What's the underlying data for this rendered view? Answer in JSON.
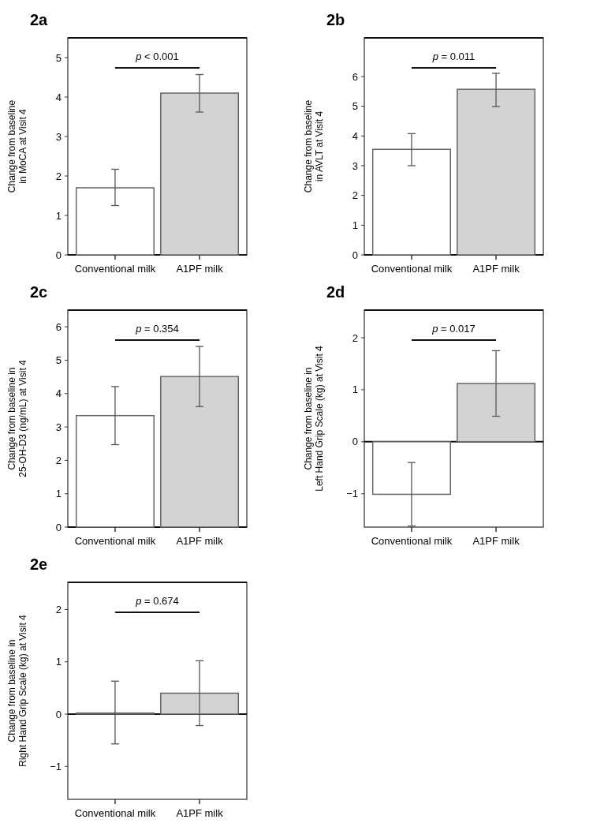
{
  "chart_data": [
    {
      "type": "bar",
      "title": "2a",
      "ylabel": "Change from baseline\nin MoCA at Visit 4",
      "categories": [
        "Conventional milk",
        "A1PF milk"
      ],
      "values": [
        1.7,
        4.1
      ],
      "colors": [
        "#ffffff",
        "#d3d3d3"
      ],
      "errors": [
        [
          1.25,
          2.17
        ],
        [
          3.62,
          4.57
        ]
      ],
      "ylim": [
        0,
        5.5
      ],
      "yticks": [
        0,
        1,
        2,
        3,
        4,
        5
      ],
      "annotations": [
        "p < 0.001"
      ]
    },
    {
      "type": "bar",
      "title": "2b",
      "ylabel": "Change from baseline\nin AVLT at Visit 4",
      "categories": [
        "Conventional milk",
        "A1PF milk"
      ],
      "values": [
        3.55,
        5.57
      ],
      "colors": [
        "#ffffff",
        "#d3d3d3"
      ],
      "errors": [
        [
          3.0,
          4.08
        ],
        [
          4.99,
          6.11
        ]
      ],
      "ylim": [
        0,
        7.3
      ],
      "yticks": [
        0,
        1,
        2,
        3,
        4,
        5,
        6
      ],
      "annotations": [
        "p = 0.011"
      ]
    },
    {
      "type": "bar",
      "title": "2c",
      "ylabel": "Change from baseline in\n25-OH-D3 (ng/mL) at Visit 4",
      "categories": [
        "Conventional milk",
        "A1PF milk"
      ],
      "values": [
        3.34,
        4.51
      ],
      "colors": [
        "#ffffff",
        "#d3d3d3"
      ],
      "errors": [
        [
          2.47,
          4.21
        ],
        [
          3.61,
          5.41
        ]
      ],
      "ylim": [
        0,
        6.5
      ],
      "yticks": [
        0,
        1,
        2,
        3,
        4,
        5,
        6
      ],
      "annotations": [
        "p = 0.354"
      ]
    },
    {
      "type": "bar",
      "title": "2d",
      "ylabel": "Change from baseline in\nLeft Hand Grip Scale (kg) at Visit 4",
      "categories": [
        "Conventional milk",
        "A1PF milk"
      ],
      "values": [
        -1.01,
        1.12
      ],
      "colors": [
        "#ffffff",
        "#d3d3d3"
      ],
      "errors": [
        [
          -1.62,
          -0.4
        ],
        [
          0.49,
          1.75
        ]
      ],
      "ylim": [
        -1.64,
        2.53
      ],
      "yticks": [
        -1,
        0,
        1,
        2
      ],
      "annotations": [
        "p = 0.017"
      ]
    },
    {
      "type": "bar",
      "title": "2e",
      "ylabel": "Change from baseline in\nRight Hand Grip Scale (kg) at Visit 4",
      "categories": [
        "Conventional milk",
        "A1PF milk"
      ],
      "values": [
        0.02,
        0.4
      ],
      "colors": [
        "#ffffff",
        "#d3d3d3"
      ],
      "errors": [
        [
          -0.57,
          0.63
        ],
        [
          -0.22,
          1.02
        ]
      ],
      "ylim": [
        -1.63,
        2.52
      ],
      "yticks": [
        -1,
        0,
        1,
        2
      ],
      "annotations": [
        "p = 0.674"
      ]
    }
  ]
}
